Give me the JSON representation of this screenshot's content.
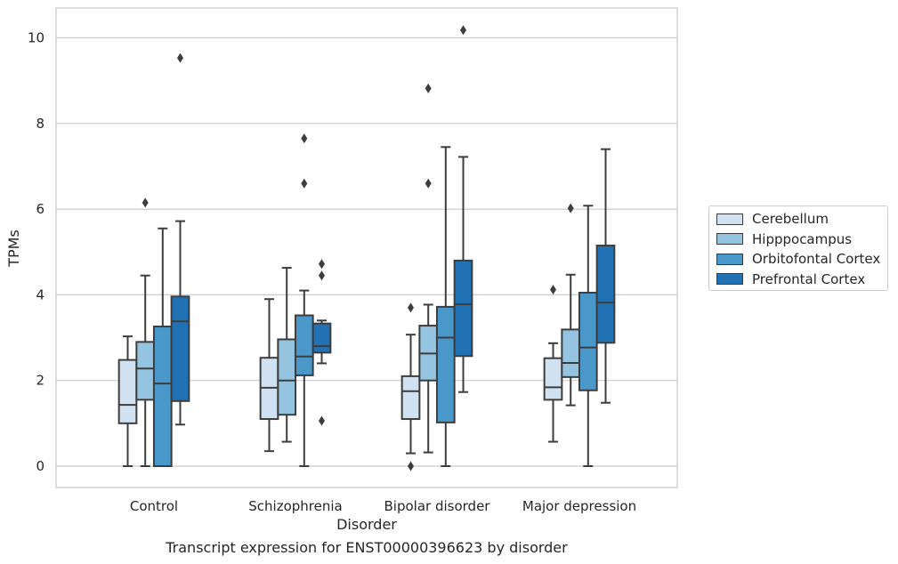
{
  "caption": "Transcript expression for ENST00000396623 by disorder",
  "chart_data": {
    "type": "box",
    "xlabel": "Disorder",
    "ylabel": "TPMs",
    "categories": [
      "Control",
      "Schizophrenia",
      "Bipolar disorder",
      "Major depression"
    ],
    "ylim": [
      -0.5,
      10.7
    ],
    "yticks": [
      0,
      2,
      4,
      6,
      8,
      10
    ],
    "grid": "horizontal",
    "legend_position": "right",
    "series": [
      {
        "name": "Cerebellum",
        "color": "#d0e1f2",
        "boxes": [
          {
            "whisker_low": 0.0,
            "q1": 1.0,
            "median": 1.43,
            "q3": 2.48,
            "whisker_high": 3.03,
            "outliers": []
          },
          {
            "whisker_low": 0.35,
            "q1": 1.1,
            "median": 1.83,
            "q3": 2.53,
            "whisker_high": 3.9,
            "outliers": []
          },
          {
            "whisker_low": 0.3,
            "q1": 1.1,
            "median": 1.75,
            "q3": 2.1,
            "whisker_high": 3.07,
            "outliers": [
              3.7,
              0.0
            ]
          },
          {
            "whisker_low": 0.57,
            "q1": 1.55,
            "median": 1.84,
            "q3": 2.52,
            "whisker_high": 2.87,
            "outliers": [
              4.12
            ]
          }
        ]
      },
      {
        "name": "Hipppocampus",
        "color": "#94c4df",
        "boxes": [
          {
            "whisker_low": 0.0,
            "q1": 1.55,
            "median": 2.28,
            "q3": 2.9,
            "whisker_high": 4.45,
            "outliers": [
              6.15
            ]
          },
          {
            "whisker_low": 0.57,
            "q1": 1.2,
            "median": 2.0,
            "q3": 2.96,
            "whisker_high": 4.63,
            "outliers": []
          },
          {
            "whisker_low": 0.32,
            "q1": 2.0,
            "median": 2.63,
            "q3": 3.28,
            "whisker_high": 3.77,
            "outliers": [
              8.82,
              6.6
            ]
          },
          {
            "whisker_low": 1.42,
            "q1": 2.08,
            "median": 2.41,
            "q3": 3.19,
            "whisker_high": 4.47,
            "outliers": [
              6.02
            ]
          }
        ]
      },
      {
        "name": "Orbitofontal Cortex",
        "color": "#4a98c9",
        "boxes": [
          {
            "whisker_low": 0.0,
            "q1": 0.0,
            "median": 1.93,
            "q3": 3.26,
            "whisker_high": 5.55,
            "outliers": []
          },
          {
            "whisker_low": 0.0,
            "q1": 2.12,
            "median": 2.56,
            "q3": 3.52,
            "whisker_high": 4.1,
            "outliers": [
              7.65,
              6.6
            ]
          },
          {
            "whisker_low": 0.0,
            "q1": 1.02,
            "median": 3.0,
            "q3": 3.72,
            "whisker_high": 7.45,
            "outliers": []
          },
          {
            "whisker_low": 0.0,
            "q1": 1.77,
            "median": 2.77,
            "q3": 4.05,
            "whisker_high": 6.08,
            "outliers": []
          }
        ]
      },
      {
        "name": "Prefrontal Cortex",
        "color": "#2171b5",
        "boxes": [
          {
            "whisker_low": 0.97,
            "q1": 1.52,
            "median": 3.38,
            "q3": 3.96,
            "whisker_high": 5.72,
            "outliers": [
              9.53
            ]
          },
          {
            "whisker_low": 2.4,
            "q1": 2.65,
            "median": 2.8,
            "q3": 3.33,
            "whisker_high": 3.4,
            "outliers": [
              4.72,
              4.45,
              1.06
            ]
          },
          {
            "whisker_low": 1.73,
            "q1": 2.57,
            "median": 3.78,
            "q3": 4.8,
            "whisker_high": 7.22,
            "outliers": [
              10.18
            ]
          },
          {
            "whisker_low": 1.48,
            "q1": 2.88,
            "median": 3.82,
            "q3": 5.15,
            "whisker_high": 7.4,
            "outliers": []
          }
        ]
      }
    ]
  }
}
